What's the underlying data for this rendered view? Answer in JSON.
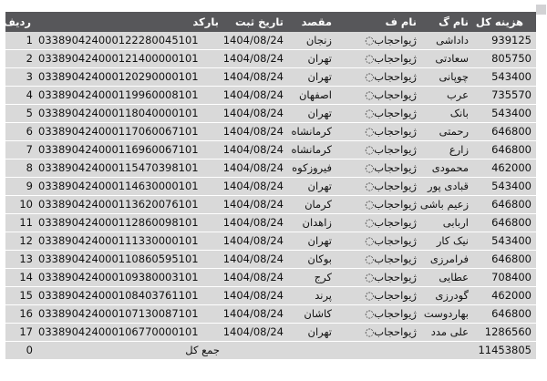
{
  "page": {
    "background": "#ffffff"
  },
  "corner_notch": {
    "color": "#d2d2d4"
  },
  "table": {
    "header_bg": "#57575a",
    "header_text_color": "#ffffff",
    "row_bg": "#d9d9d9",
    "separator_color": "#ffffff",
    "columns": [
      {
        "key": "cost",
        "label": "هزینه کل"
      },
      {
        "key": "name_g",
        "label": "نام گ"
      },
      {
        "key": "name_f",
        "label": "نام ف"
      },
      {
        "key": "dest",
        "label": "مقصد"
      },
      {
        "key": "date",
        "label": "تاریخ ثبت"
      },
      {
        "key": "barcode",
        "label": "بارکد"
      },
      {
        "key": "row",
        "label": "ردیف"
      }
    ],
    "rows": [
      {
        "row": "1",
        "barcode": "033890424000122280045101",
        "date": "1404/08/24",
        "dest": "زنجان",
        "name_f": "ژیواحجاب◌",
        "name_g": "داداشی",
        "cost": "939125"
      },
      {
        "row": "2",
        "barcode": "033890424000121400000101",
        "date": "1404/08/24",
        "dest": "تهران",
        "name_f": "ژیواحجاب◌",
        "name_g": "سعادتی",
        "cost": "805750"
      },
      {
        "row": "3",
        "barcode": "033890424000120290000101",
        "date": "1404/08/24",
        "dest": "تهران",
        "name_f": "ژیواحجاب◌",
        "name_g": "چوپانی",
        "cost": "543400"
      },
      {
        "row": "4",
        "barcode": "033890424000119960008101",
        "date": "1404/08/24",
        "dest": "اصفهان",
        "name_f": "ژیواحجاب◌",
        "name_g": "عرب",
        "cost": "735570"
      },
      {
        "row": "5",
        "barcode": "033890424000118040000101",
        "date": "1404/08/24",
        "dest": "تهران",
        "name_f": "ژیواحجاب◌",
        "name_g": "بانک",
        "cost": "543400"
      },
      {
        "row": "6",
        "barcode": "033890424000117060067101",
        "date": "1404/08/24",
        "dest": "کرمانشاه",
        "name_f": "ژیواحجاب◌",
        "name_g": "رحمتی",
        "cost": "646800"
      },
      {
        "row": "7",
        "barcode": "033890424000116960067101",
        "date": "1404/08/24",
        "dest": "کرمانشاه",
        "name_f": "ژیواحجاب◌",
        "name_g": "زارع",
        "cost": "646800"
      },
      {
        "row": "8",
        "barcode": "033890424000115470398101",
        "date": "1404/08/24",
        "dest": "فیروزکوه",
        "name_f": "ژیواحجاب◌",
        "name_g": "محمودی",
        "cost": "462000"
      },
      {
        "row": "9",
        "barcode": "033890424000114630000101",
        "date": "1404/08/24",
        "dest": "تهران",
        "name_f": "ژیواحجاب◌",
        "name_g": "قبادی پور",
        "cost": "543400"
      },
      {
        "row": "10",
        "barcode": "033890424000113620076101",
        "date": "1404/08/24",
        "dest": "کرمان",
        "name_f": "ژیواحجاب◌",
        "name_g": "زعیم باشی",
        "cost": "646800"
      },
      {
        "row": "11",
        "barcode": "033890424000112860098101",
        "date": "1404/08/24",
        "dest": "زاهدان",
        "name_f": "ژیواحجاب◌",
        "name_g": "اربابی",
        "cost": "646800"
      },
      {
        "row": "12",
        "barcode": "033890424000111330000101",
        "date": "1404/08/24",
        "dest": "تهران",
        "name_f": "ژیواحجاب◌",
        "name_g": "نیک کار",
        "cost": "543400"
      },
      {
        "row": "13",
        "barcode": "033890424000110860595101",
        "date": "1404/08/24",
        "dest": "بوکان",
        "name_f": "ژیواحجاب◌",
        "name_g": "فرامرزی",
        "cost": "646800"
      },
      {
        "row": "14",
        "barcode": "033890424000109380003101",
        "date": "1404/08/24",
        "dest": "کرج",
        "name_f": "ژیواحجاب◌",
        "name_g": "عطایی",
        "cost": "708400"
      },
      {
        "row": "15",
        "barcode": "033890424000108403761101",
        "date": "1404/08/24",
        "dest": "پرند",
        "name_f": "ژیواحجاب◌",
        "name_g": "گودرزی",
        "cost": "462000"
      },
      {
        "row": "16",
        "barcode": "033890424000107130087101",
        "date": "1404/08/24",
        "dest": "کاشان",
        "name_f": "ژیواحجاب◌",
        "name_g": "بهاردوست",
        "cost": "646800"
      },
      {
        "row": "17",
        "barcode": "033890424000106770000101",
        "date": "1404/08/24",
        "dest": "تهران",
        "name_f": "ژیواحجاب◌",
        "name_g": "علی مدد",
        "cost": "1286560"
      }
    ],
    "footer": {
      "row_value": "0",
      "label": "جمع کل",
      "total": "11453805"
    }
  }
}
